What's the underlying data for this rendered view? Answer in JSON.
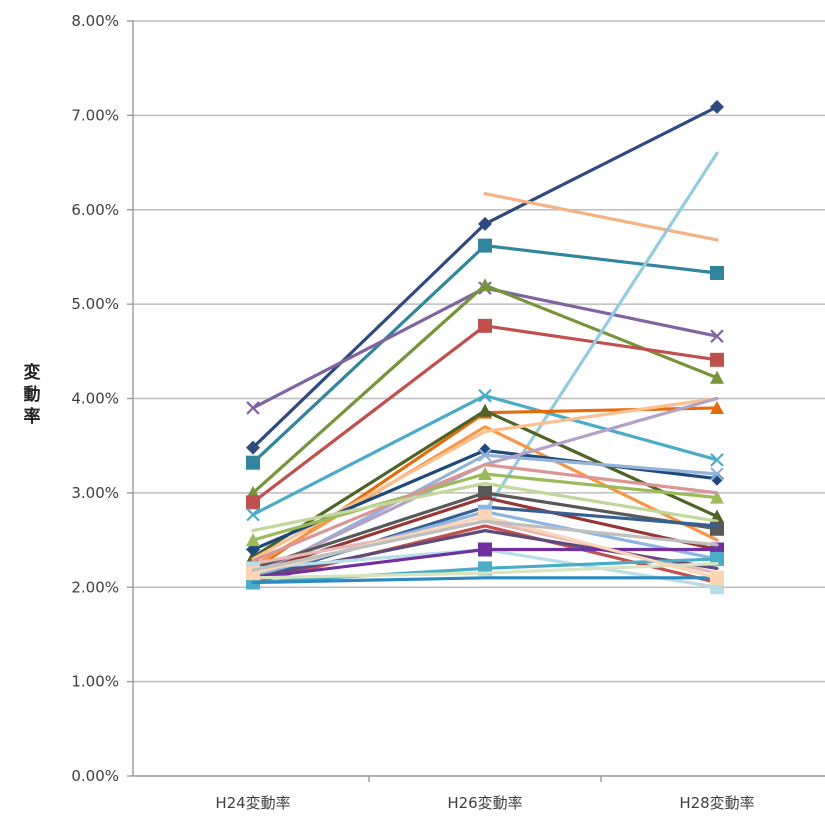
{
  "chart_data": {
    "type": "line",
    "title": "",
    "xlabel": "",
    "ylabel": "変動率",
    "ylim": [
      0,
      0.08
    ],
    "y_ticks": [
      "0.00%",
      "1.00%",
      "2.00%",
      "3.00%",
      "4.00%",
      "5.00%",
      "6.00%",
      "7.00%",
      "8.00%"
    ],
    "categories": [
      "H24変動率",
      "H26変動率",
      "H28変動率"
    ],
    "grid": true,
    "legend": "none",
    "series": [
      {
        "values": [
          0.0348,
          0.0585,
          0.0709
        ],
        "color": "#2f4a7e",
        "marker": "diamond"
      },
      {
        "values": [
          null,
          0.0617,
          0.0568
        ],
        "color": "#f4b183",
        "marker": "none"
      },
      {
        "values": [
          0.0332,
          0.0562,
          0.0533
        ],
        "color": "#31859c",
        "marker": "square"
      },
      {
        "values": [
          0.039,
          0.0517,
          0.0466
        ],
        "color": "#8064a2",
        "marker": "x"
      },
      {
        "values": [
          0.03,
          0.052,
          0.0422
        ],
        "color": "#77933c",
        "marker": "triangle"
      },
      {
        "values": [
          0.029,
          0.0477,
          0.0441
        ],
        "color": "#c0504d",
        "marker": "square"
      },
      {
        "values": [
          0.021,
          0.028,
          0.066
        ],
        "color": "#93cddd",
        "marker": "none"
      },
      {
        "values": [
          0.0277,
          0.0403,
          0.0335
        ],
        "color": "#4bacc6",
        "marker": "x"
      },
      {
        "values": [
          0.0218,
          0.0385,
          0.039
        ],
        "color": "#e46c0a",
        "marker": "triangle"
      },
      {
        "values": [
          0.0232,
          0.0387,
          0.0275
        ],
        "color": "#4f6228",
        "marker": "triangle"
      },
      {
        "values": [
          0.0222,
          0.037,
          0.025
        ],
        "color": "#f79646",
        "marker": "none"
      },
      {
        "values": [
          0.023,
          0.0365,
          0.04
        ],
        "color": "#fac090",
        "marker": "none"
      },
      {
        "values": [
          0.024,
          0.0345,
          0.0315
        ],
        "color": "#1f497d",
        "marker": "diamond"
      },
      {
        "values": [
          0.021,
          0.034,
          0.032
        ],
        "color": "#95b3d7",
        "marker": "x"
      },
      {
        "values": [
          0.0213,
          0.033,
          0.04
        ],
        "color": "#b3a2c7",
        "marker": "none"
      },
      {
        "values": [
          0.025,
          0.032,
          0.0295
        ],
        "color": "#9bbb59",
        "marker": "triangle"
      },
      {
        "values": [
          0.0228,
          0.033,
          0.03
        ],
        "color": "#d99694",
        "marker": "none"
      },
      {
        "values": [
          0.026,
          0.031,
          0.027
        ],
        "color": "#c3d69b",
        "marker": "none"
      },
      {
        "values": [
          0.022,
          0.03,
          0.0262
        ],
        "color": "#595959",
        "marker": "square"
      },
      {
        "values": [
          0.0215,
          0.0295,
          0.024
        ],
        "color": "#953735",
        "marker": "none"
      },
      {
        "values": [
          0.0208,
          0.0285,
          0.0265
        ],
        "color": "#366092",
        "marker": "none"
      },
      {
        "values": [
          0.0212,
          0.028,
          0.023
        ],
        "color": "#8eb4e3",
        "marker": "square"
      },
      {
        "values": [
          0.0225,
          0.027,
          0.0215
        ],
        "color": "#e6b9b8",
        "marker": "none"
      },
      {
        "values": [
          0.0205,
          0.0265,
          0.0205
        ],
        "color": "#c0504d",
        "marker": "none"
      },
      {
        "values": [
          0.021,
          0.026,
          0.022
        ],
        "color": "#604a7b",
        "marker": "none"
      },
      {
        "values": [
          0.022,
          0.024,
          0.02
        ],
        "color": "#b7dee8",
        "marker": "square"
      },
      {
        "values": [
          0.021,
          0.024,
          0.024
        ],
        "color": "#7030a0",
        "marker": "square"
      },
      {
        "values": [
          0.0205,
          0.022,
          0.023
        ],
        "color": "#4bacc6",
        "marker": "square"
      },
      {
        "values": [
          0.021,
          0.0215,
          0.0225
        ],
        "color": "#d7e4bd",
        "marker": "none"
      },
      {
        "values": [
          0.0205,
          0.021,
          0.021
        ],
        "color": "#2c8ac0",
        "marker": "none"
      },
      {
        "values": [
          0.0215,
          0.0275,
          0.021
        ],
        "color": "#fcd5b5",
        "marker": "square"
      },
      {
        "values": [
          0.0218,
          0.027,
          0.0245
        ],
        "color": "#bfbfbf",
        "marker": "none"
      }
    ]
  }
}
